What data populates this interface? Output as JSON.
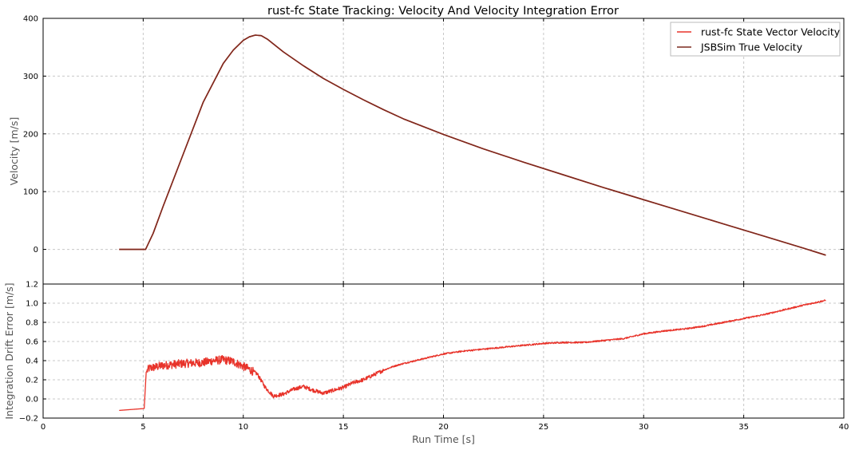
{
  "chart_data": [
    {
      "type": "line",
      "title": "rust-fc State Tracking: Velocity And Velocity Integration Error",
      "xlabel": "",
      "ylabel": "Velocity [m/s]",
      "xlim": [
        0,
        40
      ],
      "ylim": [
        -60,
        400
      ],
      "xticks": [
        0,
        5,
        10,
        15,
        20,
        25,
        30,
        35,
        40
      ],
      "yticks": [
        0,
        100,
        200,
        300,
        400
      ],
      "grid": true,
      "legend_position": "top-right",
      "series": [
        {
          "name": "rust-fc State Vector Velocity",
          "color": "#e8332a",
          "x": [
            3.8,
            4.5,
            5.12,
            5.5,
            6,
            7,
            8,
            9,
            9.5,
            10,
            10.3,
            10.6,
            10.9,
            11.2,
            11.6,
            12,
            13,
            14,
            15,
            16,
            17,
            18,
            20,
            22,
            24,
            26,
            28,
            30,
            32,
            34,
            36,
            38,
            39.1
          ],
          "y": [
            0,
            0,
            0,
            28,
            75,
            165,
            255,
            322,
            345,
            362,
            368,
            371,
            370,
            364,
            353,
            342,
            318,
            296,
            277,
            259,
            242,
            226,
            199,
            174,
            151,
            129,
            107,
            86,
            65,
            44,
            23,
            2,
            -10
          ]
        },
        {
          "name": "JSBSim True Velocity",
          "color": "#7b2a1e",
          "x": [
            3.8,
            4.5,
            5.12,
            5.5,
            6,
            7,
            8,
            9,
            9.5,
            10,
            10.3,
            10.6,
            10.9,
            11.2,
            11.6,
            12,
            13,
            14,
            15,
            16,
            17,
            18,
            20,
            22,
            24,
            26,
            28,
            30,
            32,
            34,
            36,
            38,
            39.1
          ],
          "y": [
            0,
            0,
            0,
            28,
            75,
            165,
            255,
            322,
            345,
            362,
            368,
            371,
            370,
            364,
            353,
            342,
            318,
            296,
            277,
            259,
            242,
            226,
            199,
            174,
            151,
            129,
            107,
            86,
            65,
            44,
            23,
            2,
            -10
          ]
        }
      ]
    },
    {
      "type": "line",
      "title": "",
      "xlabel": "Run Time [s]",
      "ylabel": "Integration Drift Error [m/s]",
      "xlim": [
        0,
        40
      ],
      "ylim": [
        -0.2,
        1.2
      ],
      "xticks": [
        0,
        5,
        10,
        15,
        20,
        25,
        30,
        35,
        40
      ],
      "yticks": [
        -0.2,
        0.0,
        0.2,
        0.4,
        0.6,
        0.8,
        1.0,
        1.2
      ],
      "grid": true,
      "series": [
        {
          "color": "#e8332a",
          "x": [
            3.8,
            5.05,
            5.15,
            5.3,
            6,
            7,
            8,
            8.5,
            9,
            9.5,
            9.9,
            10.3,
            10.7,
            11.1,
            11.5,
            12,
            12.5,
            13,
            13.5,
            14,
            14.5,
            15,
            15.5,
            16,
            16.5,
            17,
            17.5,
            18,
            19,
            20,
            21,
            22,
            23,
            24,
            25,
            26,
            27,
            28,
            29,
            30,
            31,
            32,
            33,
            34,
            35,
            36,
            37,
            38,
            39.1
          ],
          "y": [
            -0.12,
            -0.1,
            0.28,
            0.32,
            0.35,
            0.37,
            0.38,
            0.4,
            0.41,
            0.39,
            0.35,
            0.31,
            0.26,
            0.12,
            0.03,
            0.05,
            0.1,
            0.13,
            0.09,
            0.06,
            0.09,
            0.12,
            0.17,
            0.2,
            0.25,
            0.3,
            0.34,
            0.37,
            0.42,
            0.47,
            0.5,
            0.52,
            0.54,
            0.56,
            0.58,
            0.59,
            0.59,
            0.61,
            0.63,
            0.68,
            0.71,
            0.73,
            0.76,
            0.8,
            0.84,
            0.88,
            0.93,
            0.98,
            1.03
          ],
          "noise": [
            {
              "x_from": 5.2,
              "x_to": 10.5,
              "amplitude": 0.09
            },
            {
              "x_from": 10.5,
              "x_to": 17.0,
              "amplitude": 0.04
            },
            {
              "x_from": 17.0,
              "x_to": 39.1,
              "amplitude": 0.015
            }
          ]
        }
      ]
    }
  ]
}
